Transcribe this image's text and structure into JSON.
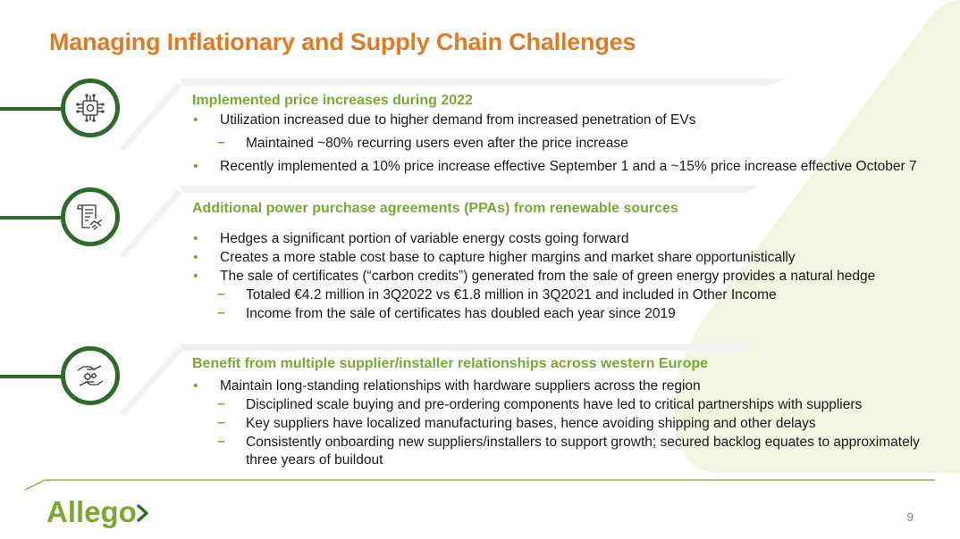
{
  "title": "Managing Inflationary and Supply Chain Challenges",
  "sections": [
    {
      "heading": "Implemented price increases during 2022",
      "icon": "circuit-chip-icon",
      "items": [
        {
          "level": 1,
          "text": "Utilization increased due to higher demand from increased penetration of EVs"
        },
        {
          "level": 2,
          "text": "Maintained ~80% recurring users even after the price increase"
        },
        {
          "level": 1,
          "text": "Recently implemented a 10% price increase effective September 1 and a ~15% price increase effective October 7"
        }
      ]
    },
    {
      "heading": "Additional power purchase agreements (PPAs) from renewable sources",
      "icon": "contract-handshake-icon",
      "items": [
        {
          "level": 1,
          "text": "Hedges a significant portion of variable energy costs going forward"
        },
        {
          "level": 1,
          "text": "Creates a more stable cost base to capture higher margins and market share opportunistically"
        },
        {
          "level": 1,
          "text": "The sale of certificates (“carbon credits”) generated from the sale of green energy provides a natural hedge"
        },
        {
          "level": 2,
          "text": "Totaled €4.2 million in 3Q2022 vs €1.8 million in 3Q2021 and included in Other Income"
        },
        {
          "level": 2,
          "text": "Income from the sale of certificates has doubled each year since 2019"
        }
      ]
    },
    {
      "heading": "Benefit from multiple supplier/installer relationships across western Europe",
      "icon": "hands-gears-icon",
      "items": [
        {
          "level": 1,
          "text": "Maintain long-standing relationships with hardware suppliers across the region"
        },
        {
          "level": 2,
          "text": "Disciplined scale buying and pre-ordering components have led to critical partnerships with suppliers"
        },
        {
          "level": 2,
          "text": "Key suppliers have localized manufacturing bases, hence avoiding shipping and other delays"
        },
        {
          "level": 2,
          "text": "Consistently onboarding new suppliers/installers to support growth; secured backlog equates to approximately three years of buildout"
        }
      ]
    }
  ],
  "footer": {
    "logo_text": "Allego",
    "page_number": "9"
  },
  "colors": {
    "title": "#e07b24",
    "accent_green": "#7aa834",
    "dark_green": "#2e6b2a",
    "background_shape": "#f2f5e0"
  }
}
